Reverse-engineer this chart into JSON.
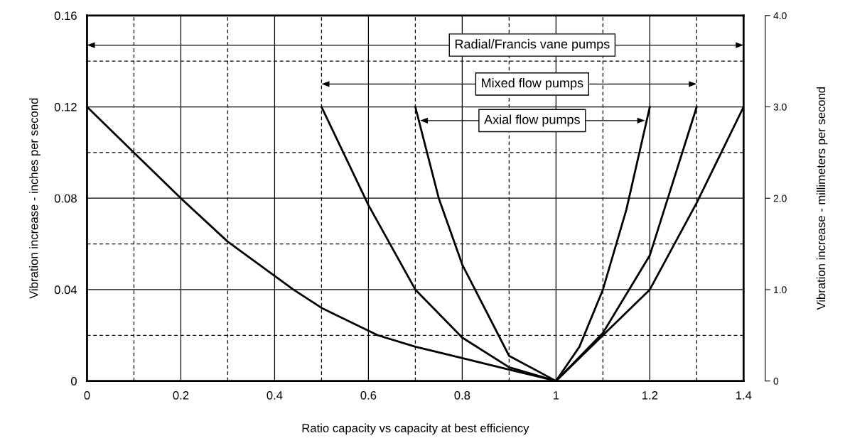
{
  "chart_data": {
    "type": "line",
    "xlabel": "Ratio capacity vs capacity at best efficiency",
    "ylabel": "Vibration increase - inches per second",
    "y2label": "Vibration increase - millimeters per second",
    "xlim": [
      0,
      1.4
    ],
    "xticks": [
      0,
      {
        "value": 0.1,
        "label": null
      },
      0.2,
      {
        "value": 0.3,
        "label": null
      },
      0.4,
      {
        "value": 0.5,
        "label": null
      },
      0.6,
      {
        "value": 0.7,
        "label": null
      },
      0.8,
      {
        "value": 0.9,
        "label": null
      },
      1,
      {
        "value": 1.1,
        "label": null
      },
      1.2,
      {
        "value": 1.3,
        "label": null
      },
      1.4
    ],
    "ylim": [
      0,
      0.16
    ],
    "yticks": [
      0,
      {
        "value": 0.02,
        "label": null
      },
      0.04,
      {
        "value": 0.06,
        "label": null
      },
      0.08,
      {
        "value": 0.1,
        "label": null
      },
      0.12,
      {
        "value": 0.14,
        "label": null
      },
      0.16
    ],
    "y2lim": [
      0,
      4
    ],
    "y2ticks": [
      0,
      {
        "value": 1,
        "label": "1.0"
      },
      {
        "value": 2,
        "label": "2.0"
      },
      {
        "value": 3,
        "label": "3.0"
      },
      {
        "value": 4,
        "label": "4.0"
      }
    ],
    "grid": true,
    "line_style": "solid",
    "marker": "none",
    "series": [
      {
        "color": "#000000",
        "x": [
          0,
          0.1,
          0.2,
          0.3,
          0.4,
          0.44,
          0.5,
          0.62,
          0.7,
          0.8,
          0.9,
          1,
          1.1,
          1.2,
          1.3,
          1.4
        ],
        "values": [
          0.12,
          0.1,
          0.08,
          0.061,
          0.046,
          0.04,
          0.032,
          0.02,
          0.015,
          0.01,
          0.005,
          0,
          0.02,
          0.04,
          0.078,
          0.12
        ]
      },
      {
        "color": "#000000",
        "x": [
          0.5,
          0.6,
          0.7,
          0.8,
          0.9,
          1,
          1.1,
          1.2,
          1.3
        ],
        "values": [
          0.12,
          0.077,
          0.04,
          0.019,
          0.006,
          0,
          0.021,
          0.055,
          0.12
        ]
      },
      {
        "color": "#000000",
        "x": [
          0.7,
          0.75,
          0.8,
          0.9,
          1,
          1.05,
          1.1,
          1.15,
          1.2
        ],
        "values": [
          0.12,
          0.08,
          0.051,
          0.011,
          0,
          0.015,
          0.04,
          0.075,
          0.12
        ]
      }
    ],
    "annotations": [
      "Radial/Francis vane pumps",
      "Mixed flow pumps",
      "Axial flow pumps"
    ]
  }
}
